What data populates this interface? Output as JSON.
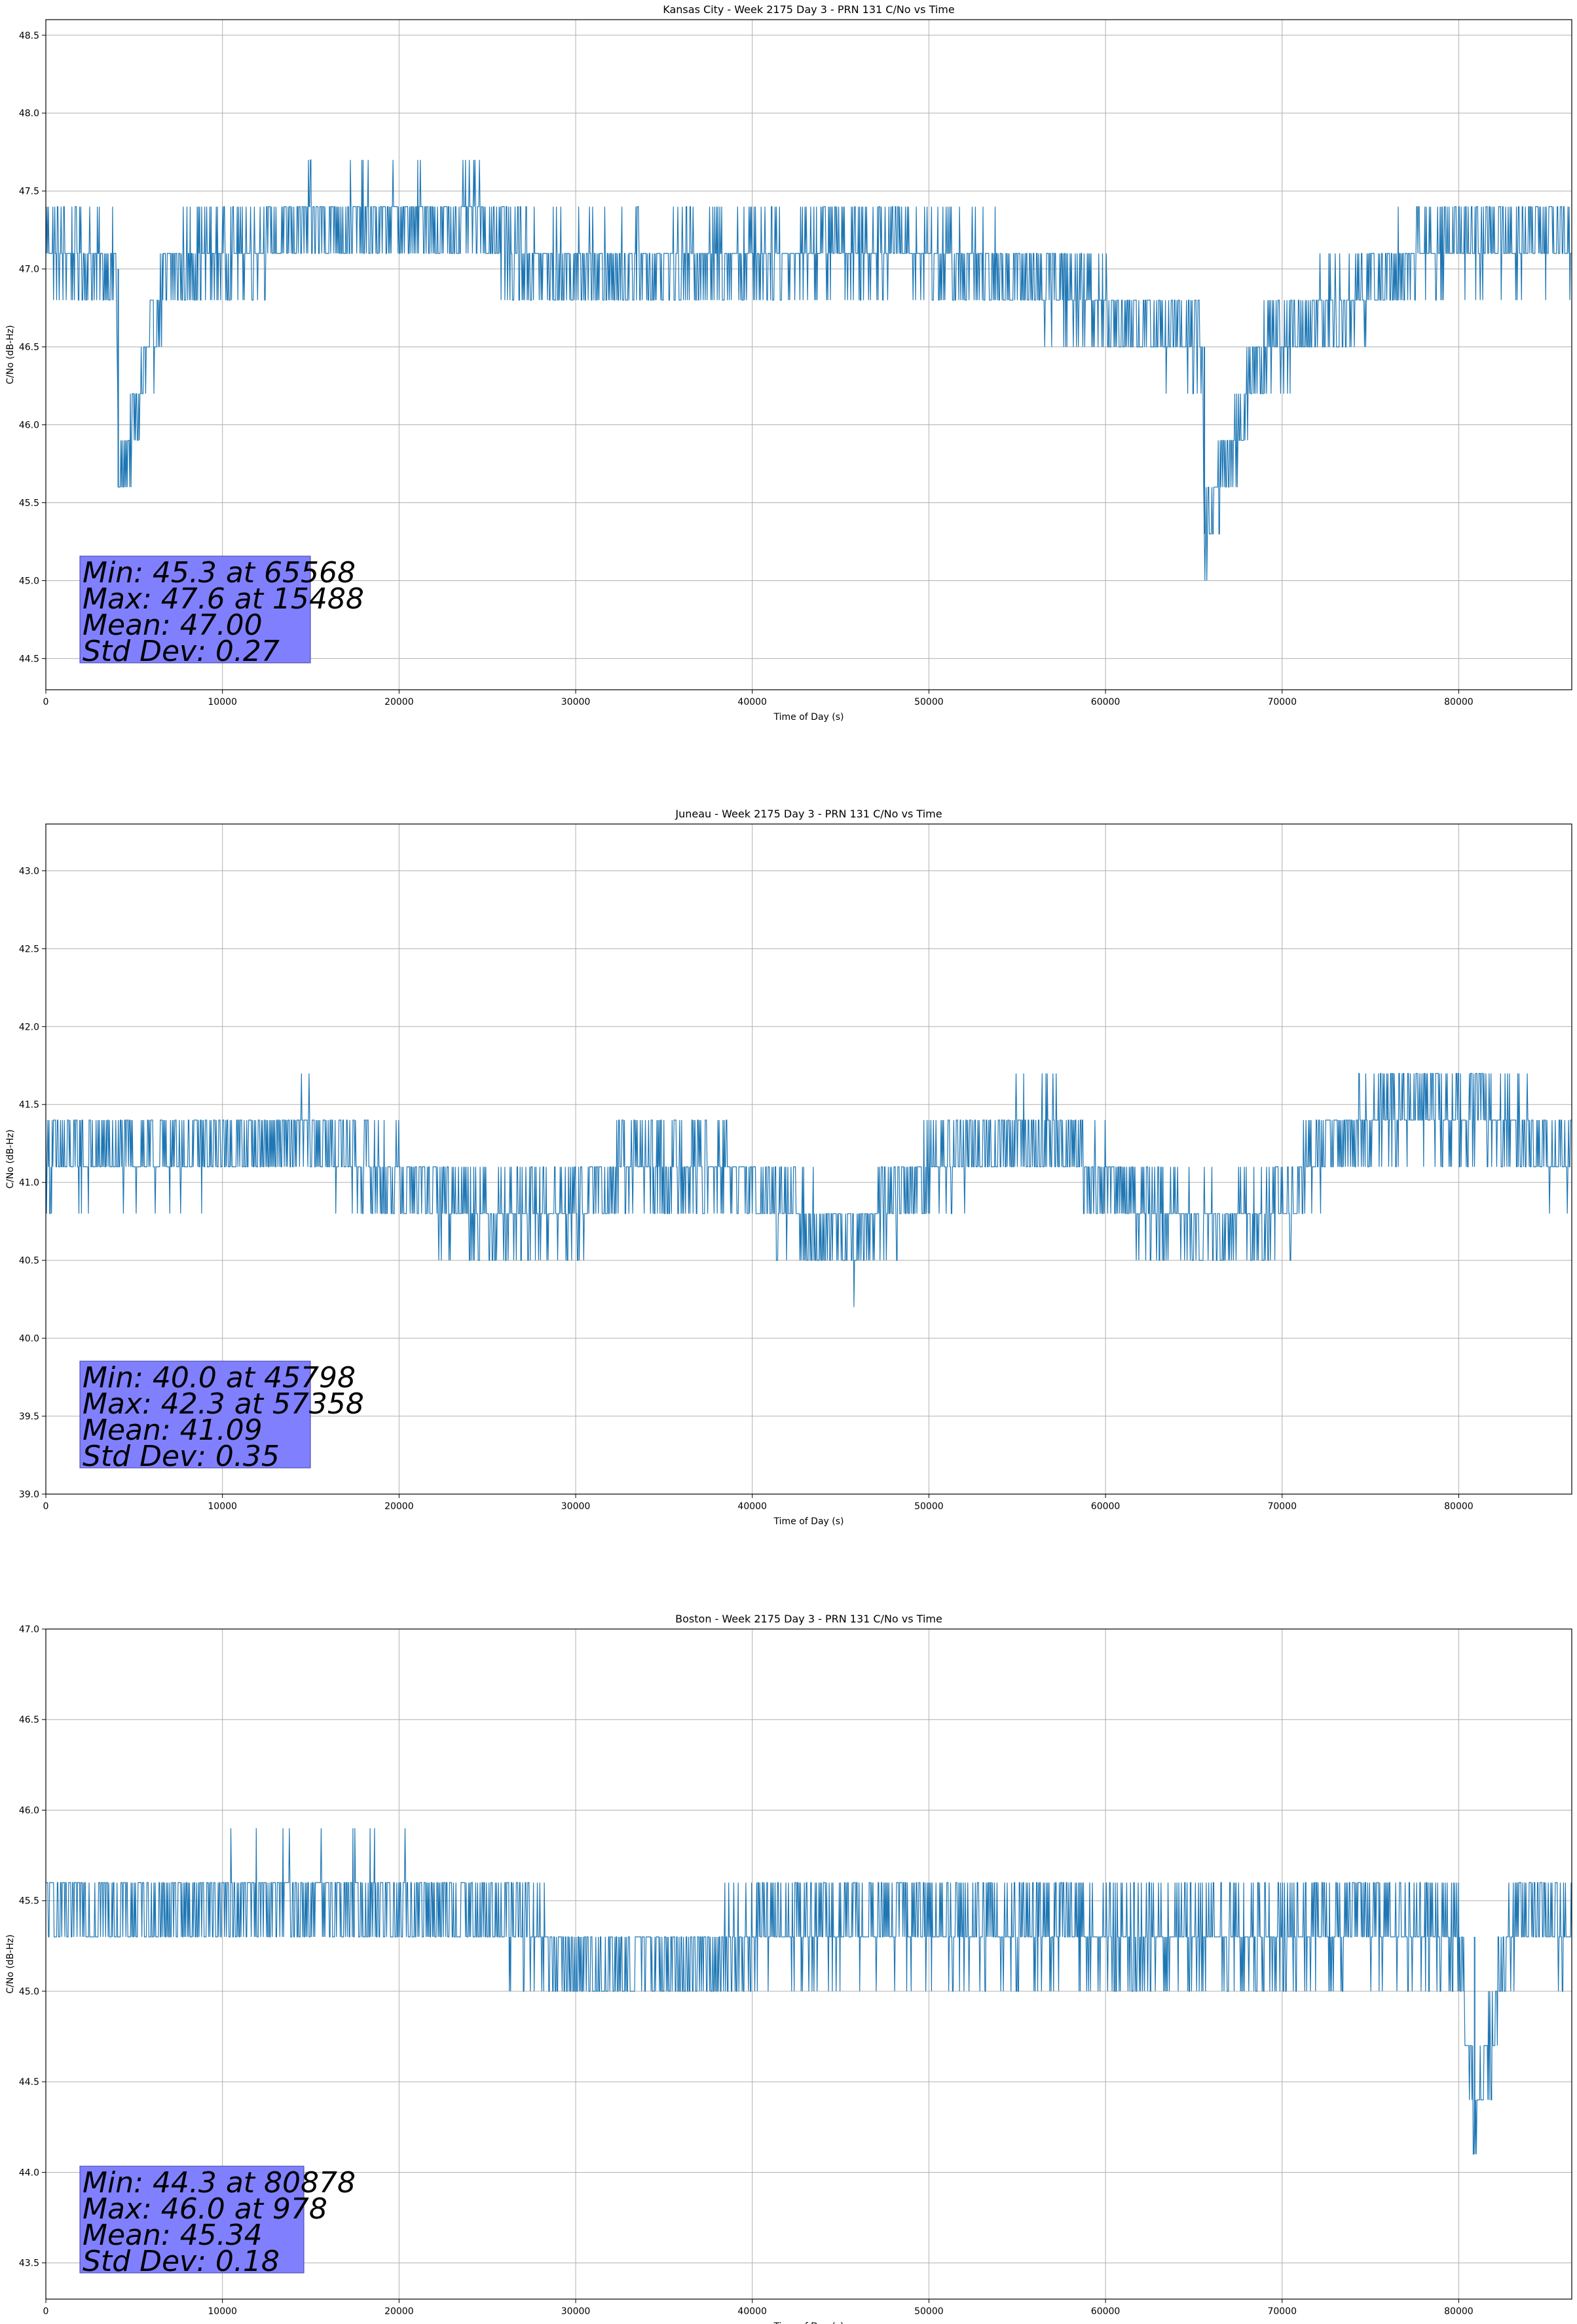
{
  "chart_data": [
    {
      "type": "line",
      "title": "Kansas City - Week 2175 Day 3 - PRN 131 C/No vs Time",
      "xlabel": "Time of Day (s)",
      "ylabel": "C/No (dB-Hz)",
      "xlim": [
        0,
        86400
      ],
      "ylim": [
        44.3,
        48.6
      ],
      "xticks": [
        0,
        10000,
        20000,
        30000,
        40000,
        50000,
        60000,
        70000,
        80000
      ],
      "yticks": [
        44.5,
        45.0,
        45.5,
        46.0,
        46.5,
        47.0,
        47.5,
        48.0,
        48.5
      ],
      "grid": true,
      "color": "#1f77b4",
      "series": [
        {
          "x": [
            0,
            4000,
            4100,
            7000,
            15000,
            24500,
            28000,
            32000,
            40000,
            48000,
            50000,
            57000,
            61000,
            65500,
            65600,
            69000,
            74000,
            76000,
            80000,
            86400
          ],
          "y": [
            47.15,
            47.0,
            45.6,
            47.0,
            47.3,
            47.3,
            47.0,
            47.0,
            47.1,
            47.2,
            47.1,
            46.9,
            46.7,
            46.5,
            45.3,
            46.5,
            46.8,
            47.0,
            47.2,
            47.2
          ]
        }
      ],
      "stats": {
        "min": "Min: 45.3 at 65568",
        "max": "Max: 47.6 at 15488",
        "mean": "Mean: 47.00",
        "std": "Std Dev: 0.27"
      }
    },
    {
      "type": "line",
      "title": "Juneau - Week 2175 Day 3 - PRN 131 C/No vs Time",
      "xlabel": "Time of Day (s)",
      "ylabel": "C/No (dB-Hz)",
      "xlim": [
        0,
        86400
      ],
      "ylim": [
        39.0,
        43.3
      ],
      "xticks": [
        0,
        10000,
        20000,
        30000,
        40000,
        50000,
        60000,
        70000,
        80000
      ],
      "yticks": [
        39.0,
        39.5,
        40.0,
        40.5,
        41.0,
        41.5,
        42.0,
        42.5,
        43.0
      ],
      "grid": true,
      "color": "#1f77b4",
      "series": [
        {
          "x": [
            0,
            8000,
            15000,
            20000,
            25000,
            30000,
            33000,
            38000,
            42000,
            45800,
            50000,
            55000,
            57300,
            60000,
            65000,
            70000,
            72000,
            77000,
            83000,
            86400
          ],
          "y": [
            41.15,
            41.2,
            41.3,
            41.0,
            40.8,
            40.85,
            41.1,
            41.1,
            40.8,
            40.6,
            41.1,
            41.3,
            41.3,
            41.0,
            40.7,
            40.8,
            41.2,
            41.5,
            41.4,
            41.1
          ]
        }
      ],
      "stats": {
        "min": "Min: 40.0 at 45798",
        "max": "Max: 42.3 at 57358",
        "mean": "Mean: 41.09",
        "std": "Std Dev: 0.35"
      }
    },
    {
      "type": "line",
      "title": "Boston - Week 2175 Day 3 - PRN 131 C/No vs Time",
      "xlabel": "Time of Day (s)",
      "ylabel": "C/No (dB-Hz)",
      "xlim": [
        0,
        86400
      ],
      "ylim": [
        43.3,
        47.0
      ],
      "xticks": [
        0,
        10000,
        20000,
        30000,
        40000,
        50000,
        60000,
        70000,
        80000
      ],
      "yticks": [
        43.5,
        44.0,
        44.5,
        45.0,
        45.5,
        46.0,
        46.5,
        47.0
      ],
      "grid": true,
      "color": "#1f77b4",
      "series": [
        {
          "x": [
            0,
            5000,
            12000,
            20000,
            26000,
            29500,
            35000,
            38000,
            41000,
            48000,
            55000,
            62000,
            68000,
            74000,
            80000,
            80900,
            83000,
            86400
          ],
          "y": [
            45.45,
            45.45,
            45.5,
            45.5,
            45.4,
            45.15,
            45.15,
            45.2,
            45.35,
            45.4,
            45.35,
            45.3,
            45.3,
            45.4,
            45.3,
            44.3,
            45.35,
            45.4
          ]
        }
      ],
      "stats": {
        "min": "Min: 44.3 at 80878",
        "max": "Max: 46.0 at 978",
        "mean": "Mean: 45.34",
        "std": "Std Dev: 0.18"
      }
    }
  ]
}
